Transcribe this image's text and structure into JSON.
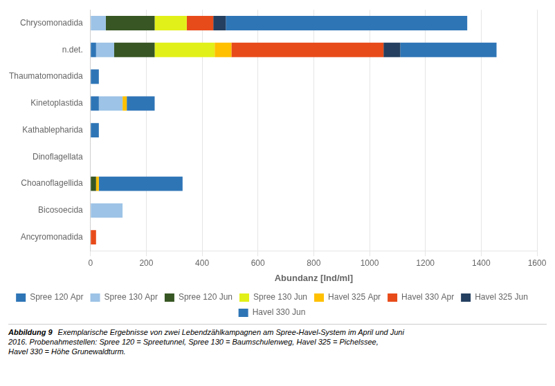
{
  "chart_data": {
    "type": "bar",
    "orientation": "horizontal",
    "stacked": true,
    "categories": [
      "Chrysomonadida",
      "n.det.",
      "Thaumatomonadida",
      "Kinetoplastida",
      "Kathablepharida",
      "Dinoflagellata",
      "Choanoflagellida",
      "Bicosoecida",
      "Ancyromonadida"
    ],
    "series": [
      {
        "name": "Spree 120 Apr",
        "color": "#2E75B6",
        "values": [
          0,
          20,
          0,
          30,
          0,
          0,
          0,
          0,
          0
        ]
      },
      {
        "name": "Spree 130 Apr",
        "color": "#9DC3E6",
        "values": [
          55,
          65,
          0,
          85,
          0,
          0,
          0,
          115,
          0
        ]
      },
      {
        "name": "Spree 120 Jun",
        "color": "#375623",
        "values": [
          175,
          145,
          0,
          0,
          0,
          0,
          20,
          0,
          0
        ]
      },
      {
        "name": "Spree 130 Jun",
        "color": "#E2F019",
        "values": [
          115,
          215,
          0,
          0,
          0,
          0,
          0,
          0,
          0
        ]
      },
      {
        "name": "Havel 325 Apr",
        "color": "#FFC000",
        "values": [
          0,
          60,
          0,
          15,
          0,
          0,
          10,
          0,
          0
        ]
      },
      {
        "name": "Havel 330 Apr",
        "color": "#E84B1A",
        "values": [
          95,
          545,
          0,
          0,
          0,
          0,
          0,
          0,
          20
        ]
      },
      {
        "name": "Havel 325 Jun",
        "color": "#243F60",
        "values": [
          45,
          60,
          0,
          0,
          0,
          0,
          0,
          0,
          0
        ]
      },
      {
        "name": "Havel 330 Jun",
        "color": "#2E75B6",
        "values": [
          865,
          345,
          30,
          100,
          30,
          0,
          300,
          0,
          0
        ]
      }
    ],
    "xlabel": "Abundanz [Ind/ml]",
    "xlim": [
      0,
      1600
    ],
    "xticks": [
      0,
      200,
      400,
      600,
      800,
      1000,
      1200,
      1400,
      1600
    ],
    "grid": true,
    "legend": "bottom",
    "caption_title": "Abbildung 9",
    "caption": [
      "Exemplarische Ergebnisse von zwei Lebendzählkampagnen am Spree-Havel-System im April und Juni",
      "2016. Probenahmestellen: Spree 120 = Spreetunnel, Spree 130 = Baumschulenweg, Havel 325 = Pichelssee,",
      "Havel 330 = Höhe Grunewaldturm."
    ]
  }
}
